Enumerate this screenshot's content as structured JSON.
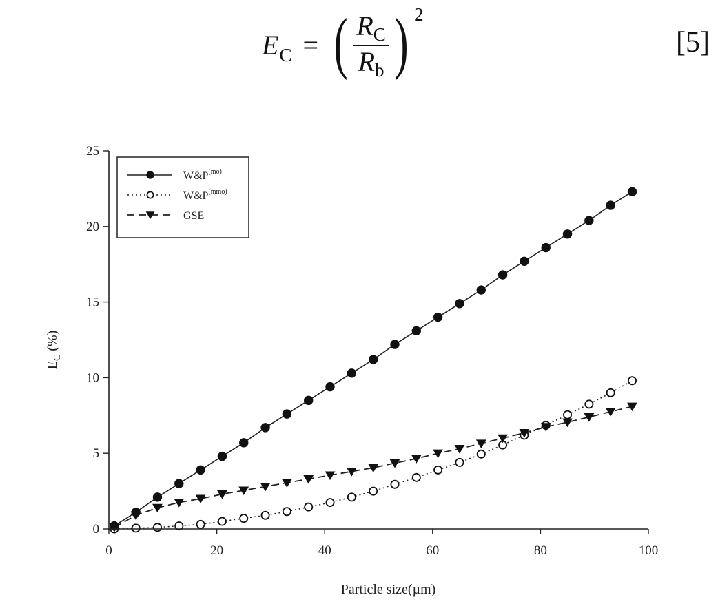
{
  "equation": {
    "lhs": "E",
    "lhs_sub": "C",
    "equals": "=",
    "numerator": "R",
    "numerator_sub": "C",
    "denominator": "R",
    "denominator_sub": "b",
    "exponent": "2",
    "open_paren": "(",
    "close_paren": ")",
    "number": "[5]"
  },
  "chart_data": {
    "type": "line",
    "title": "",
    "xlabel": "Particle size(µm)",
    "ylabel": "E_C (%)",
    "ylabel_main": "E",
    "ylabel_sub": "C",
    "ylabel_unit": " (%)",
    "xlim": [
      0,
      100
    ],
    "ylim": [
      0,
      25
    ],
    "xticks": [
      0,
      20,
      40,
      60,
      80,
      100
    ],
    "xtick_labels": [
      "0",
      "20",
      "40",
      "60",
      "80",
      "100"
    ],
    "yticks": [
      0,
      5,
      10,
      15,
      20,
      25
    ],
    "ytick_labels": [
      "0",
      "5",
      "10",
      "15",
      "20",
      "25"
    ],
    "grid": false,
    "legend_position": "upper left",
    "x": [
      1,
      5,
      9,
      13,
      17,
      21,
      25,
      29,
      33,
      37,
      41,
      45,
      49,
      53,
      57,
      61,
      65,
      69,
      73,
      77,
      81,
      85,
      89,
      93,
      97
    ],
    "series": [
      {
        "name": "W&P(mo)",
        "legend_main": "W&P",
        "legend_sup": "(mo)",
        "marker": "filled-circle",
        "line": "solid",
        "values": [
          0.2,
          1.1,
          2.1,
          3.0,
          3.9,
          4.8,
          5.7,
          6.7,
          7.6,
          8.5,
          9.4,
          10.3,
          11.2,
          12.2,
          13.1,
          14.0,
          14.9,
          15.8,
          16.8,
          17.7,
          18.6,
          19.5,
          20.4,
          21.4,
          22.3
        ]
      },
      {
        "name": "W&P(mmo)",
        "legend_main": "W&P",
        "legend_sup": "(mmo)",
        "marker": "open-circle",
        "line": "dotted",
        "values": [
          0.0,
          0.05,
          0.1,
          0.2,
          0.3,
          0.5,
          0.7,
          0.9,
          1.15,
          1.45,
          1.75,
          2.1,
          2.5,
          2.95,
          3.4,
          3.9,
          4.4,
          4.95,
          5.55,
          6.2,
          6.85,
          7.55,
          8.25,
          9.0,
          9.8
        ]
      },
      {
        "name": "GSE",
        "legend_main": "GSE",
        "legend_sup": "",
        "marker": "filled-down-triangle",
        "line": "dashed",
        "values": [
          0.1,
          0.9,
          1.4,
          1.75,
          2.0,
          2.3,
          2.55,
          2.8,
          3.05,
          3.3,
          3.55,
          3.8,
          4.05,
          4.35,
          4.65,
          5.0,
          5.3,
          5.65,
          6.0,
          6.35,
          6.75,
          7.05,
          7.4,
          7.75,
          8.1
        ]
      }
    ]
  }
}
